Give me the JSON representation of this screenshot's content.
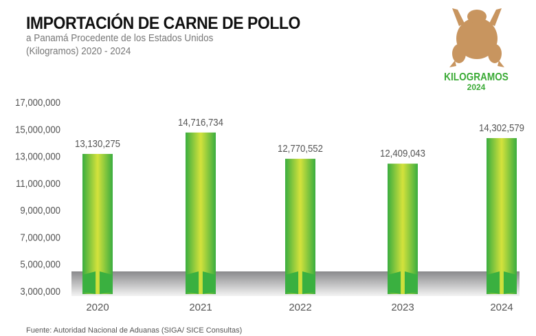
{
  "header": {
    "title": "IMPORTACIÓN DE CARNE DE POLLO",
    "subtitle1": "a Panamá Procedente de los Estados Unidos",
    "subtitle2": "(Kilogramos) 2020 - 2024"
  },
  "logo": {
    "icon": "chicken-icon",
    "label": "KILOGRAMOS",
    "year": "2024",
    "color": "#c8955f"
  },
  "source": "Fuente: Autoridad Nacional de Aduanas  (SIGA/ SICE Consultas)",
  "chart_data": {
    "type": "bar",
    "categories": [
      "2020",
      "2021",
      "2022",
      "2023",
      "2024"
    ],
    "values": [
      13130275,
      14716734,
      12770552,
      12409043,
      14302579
    ],
    "labels": [
      "13,130,275",
      "14,716,734",
      "12,770,552",
      "12,409,043",
      "14,302,579"
    ],
    "ylim": [
      3000000,
      17000000
    ],
    "yticks": [
      "3,000,000",
      "5,000,000",
      "7,000,000",
      "9,000,000",
      "11,000,000",
      "13,000,000",
      "15,000,000",
      "17,000,000"
    ],
    "grid": false,
    "colors": {
      "bar_light": "#c6dc3c",
      "bar_dark": "#3aad3f"
    }
  }
}
